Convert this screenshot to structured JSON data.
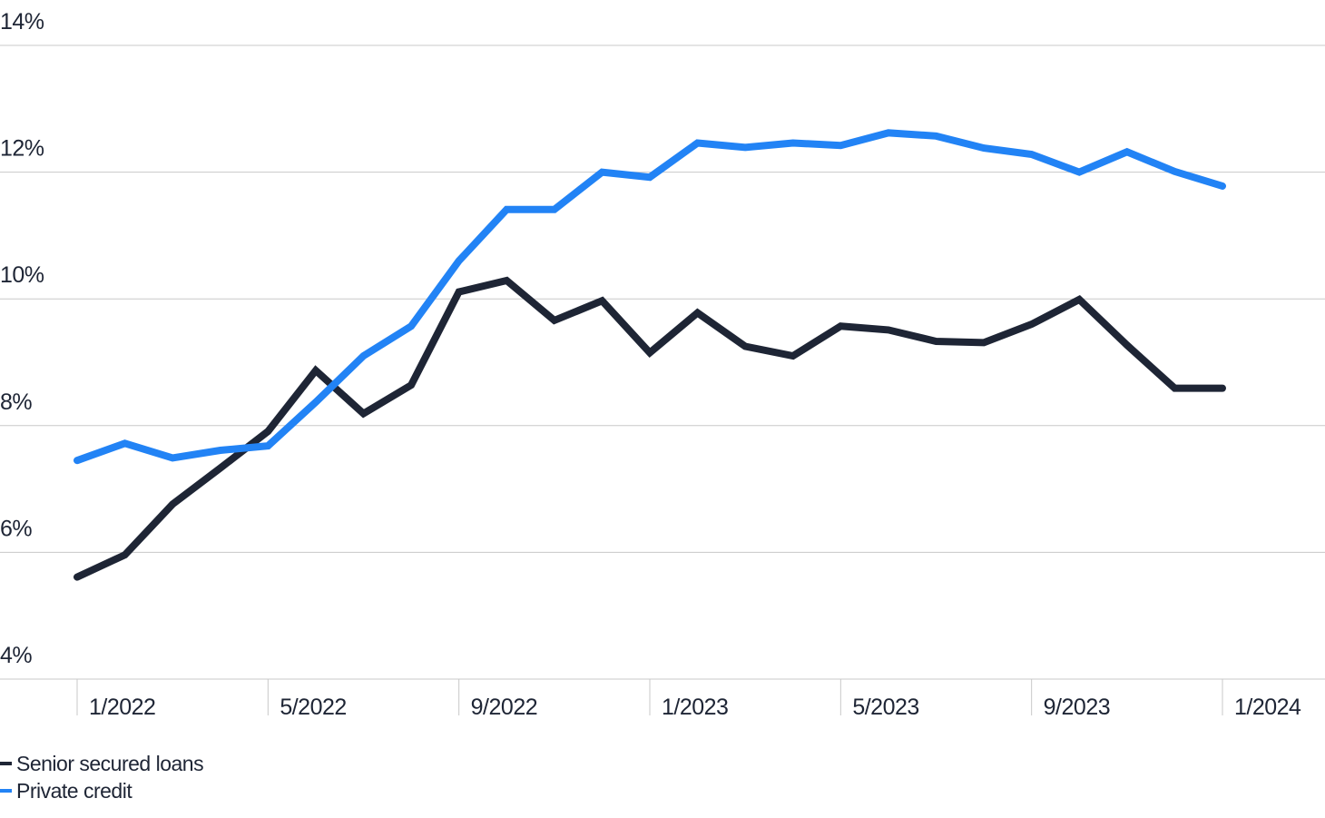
{
  "chart_data": {
    "type": "line",
    "categories": [
      "1/2022",
      null,
      null,
      null,
      "5/2022",
      null,
      null,
      null,
      "9/2022",
      null,
      null,
      null,
      "1/2023",
      null,
      null,
      null,
      "5/2023",
      null,
      null,
      null,
      "9/2023",
      null,
      null,
      null,
      "1/2024"
    ],
    "series": [
      {
        "name": "Senior secured loans",
        "color": "#1e2535",
        "values": [
          5.61,
          5.96,
          6.76,
          7.33,
          7.91,
          8.87,
          8.19,
          8.64,
          10.11,
          10.29,
          9.66,
          9.97,
          9.15,
          9.78,
          9.25,
          9.1,
          9.57,
          9.51,
          9.33,
          9.31,
          9.6,
          9.99,
          9.27,
          8.59,
          8.59
        ]
      },
      {
        "name": "Private credit",
        "color": "#2283f5",
        "values": [
          7.45,
          7.72,
          7.49,
          7.61,
          7.68,
          8.37,
          9.1,
          9.57,
          10.6,
          11.41,
          11.41,
          12.0,
          11.92,
          12.46,
          12.39,
          12.46,
          12.42,
          12.62,
          12.57,
          12.38,
          12.28,
          12.0,
          12.32,
          12.01,
          11.78
        ]
      }
    ],
    "ylim": [
      4,
      14
    ],
    "yticks": [
      {
        "value": 4,
        "label": "4%"
      },
      {
        "value": 6,
        "label": "6%"
      },
      {
        "value": 8,
        "label": "8%"
      },
      {
        "value": 10,
        "label": "10%"
      },
      {
        "value": 12,
        "label": "12%"
      },
      {
        "value": 14,
        "label": "14%"
      }
    ],
    "grid": true
  }
}
